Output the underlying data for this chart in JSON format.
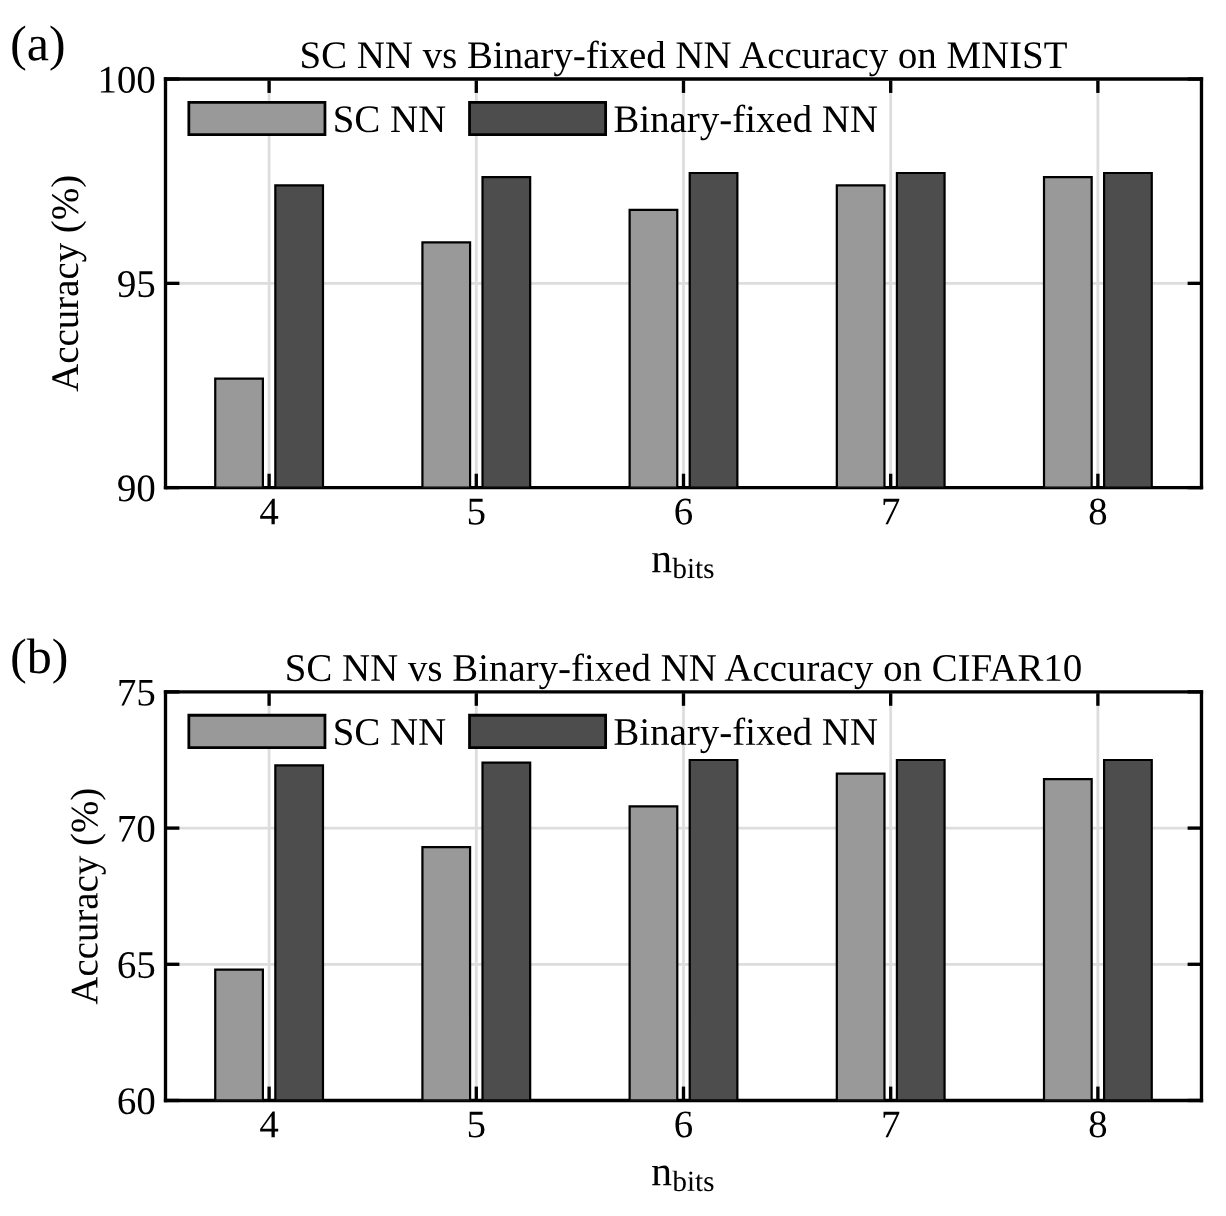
{
  "chart_data": [
    {
      "type": "bar",
      "title": "SC NN vs Binary-fixed NN Accuracy on MNIST",
      "xlabel": "n$_{bits}$",
      "ylabel": "Accuracy (%)",
      "annotations": [
        "(a)"
      ],
      "categories": [
        "4",
        "5",
        "6",
        "7",
        "8"
      ],
      "series": [
        {
          "name": "SC NN",
          "color": "#999999",
          "values": [
            92.67,
            96.0,
            96.8,
            97.4,
            97.6
          ]
        },
        {
          "name": "Binary-fixed NN",
          "color": "#4d4d4d",
          "values": [
            97.4,
            97.6,
            97.7,
            97.7,
            97.7
          ]
        }
      ],
      "ylim": [
        90,
        100
      ],
      "yticks": [
        90,
        95,
        100
      ],
      "grid": true,
      "legend": "top left"
    },
    {
      "type": "bar",
      "title": "SC NN vs Binary-fixed NN Accuracy on CIFAR10",
      "xlabel": "n$_{bits}$",
      "ylabel": "Accuracy (%)",
      "annotations": [
        "(b)"
      ],
      "categories": [
        "4",
        "5",
        "6",
        "7",
        "8"
      ],
      "series": [
        {
          "name": "SC NN",
          "color": "#999999",
          "values": [
            64.8,
            69.3,
            70.8,
            72.0,
            71.8
          ]
        },
        {
          "name": "Binary-fixed NN",
          "color": "#4d4d4d",
          "values": [
            72.3,
            72.4,
            72.5,
            72.5,
            72.5
          ]
        }
      ],
      "ylim": [
        60,
        75
      ],
      "yticks": [
        60,
        65,
        70,
        75
      ],
      "grid": true,
      "legend": "top left"
    }
  ]
}
